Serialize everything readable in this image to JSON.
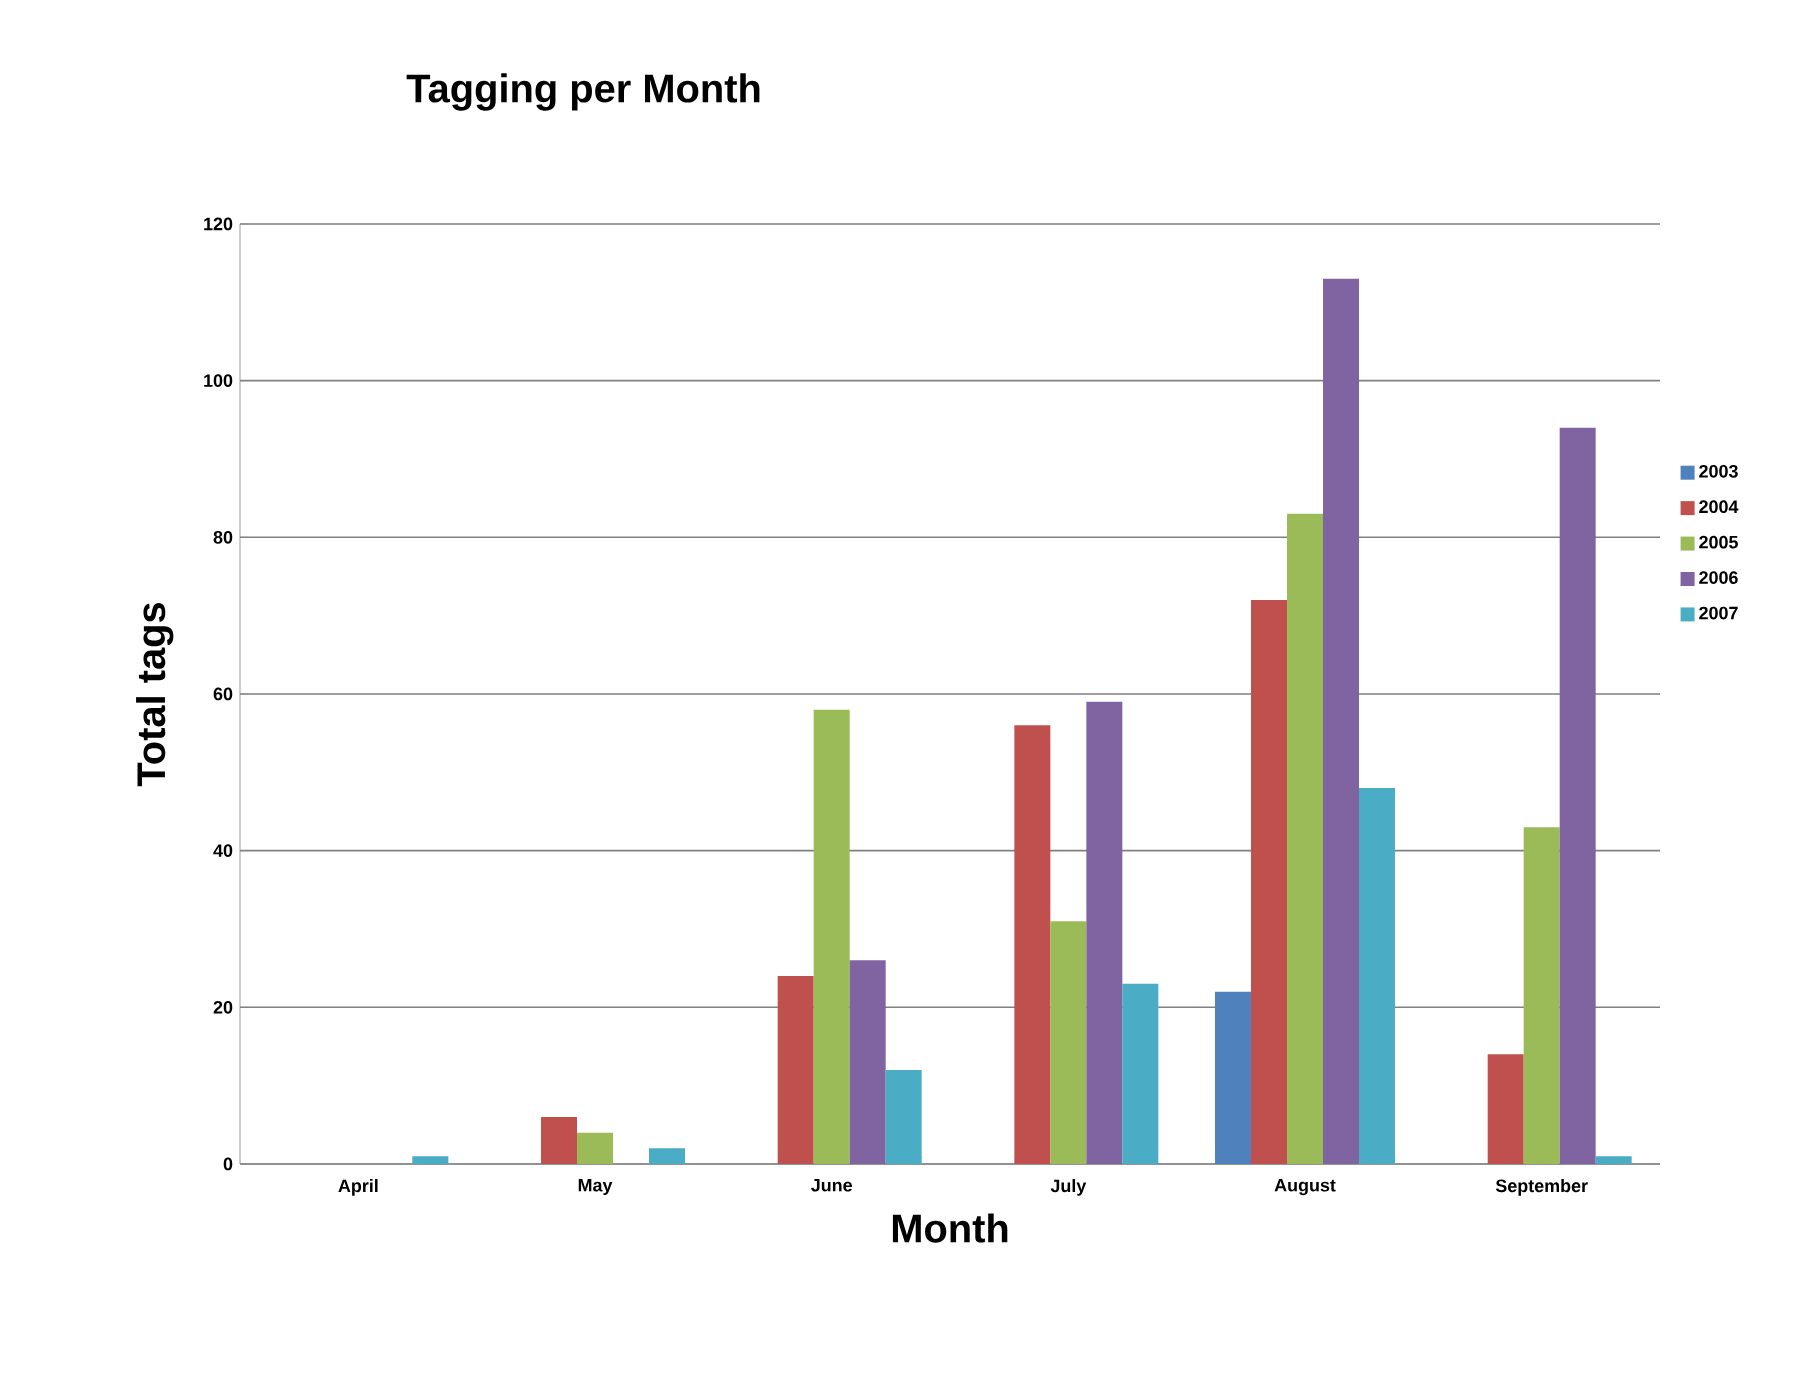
{
  "chart_data": {
    "type": "bar",
    "title": "Tagging per Month",
    "xlabel": "Month",
    "ylabel": "Total tags",
    "categories": [
      "April",
      "May",
      "June",
      "July",
      "August",
      "September"
    ],
    "series": [
      {
        "name": "2003",
        "color": "#4f81bd",
        "values": [
          0,
          0,
          0,
          0,
          22,
          0
        ]
      },
      {
        "name": "2004",
        "color": "#c0504d",
        "values": [
          0,
          6,
          24,
          56,
          72,
          14
        ]
      },
      {
        "name": "2005",
        "color": "#9bbb59",
        "values": [
          0,
          4,
          58,
          31,
          83,
          43
        ]
      },
      {
        "name": "2006",
        "color": "#8064a2",
        "values": [
          0,
          0,
          26,
          59,
          113,
          94
        ]
      },
      {
        "name": "2007",
        "color": "#4bacc6",
        "values": [
          1,
          2,
          12,
          23,
          48,
          1
        ]
      }
    ],
    "ylim": [
      0,
      120
    ],
    "yticks": [
      0,
      20,
      40,
      60,
      80,
      100,
      120
    ],
    "grid": "y",
    "legend": "right"
  }
}
